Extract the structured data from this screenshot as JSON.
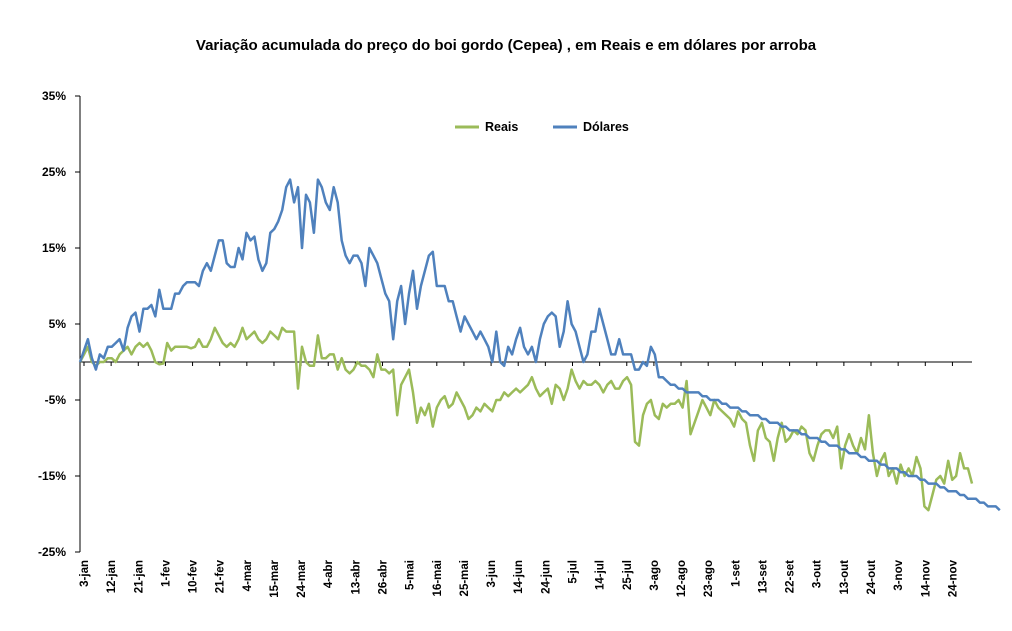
{
  "chart_data": {
    "type": "line",
    "title": "Variação acumulada do preço do boi gordo (Cepea) , em Reais e em dólares por arroba",
    "xlabel": "",
    "ylabel": "",
    "ylim": [
      -25,
      35
    ],
    "yticks": [
      -25,
      -15,
      -5,
      5,
      15,
      25,
      35
    ],
    "ytick_labels": [
      "-25%",
      "-15%",
      "-5%",
      "5%",
      "15%",
      "25%",
      "35%"
    ],
    "grid": false,
    "zero_line": true,
    "legend_position": "top-center",
    "x_tick_labels": [
      "3-jan",
      "12-jan",
      "21-jan",
      "1-fev",
      "10-fev",
      "21-fev",
      "4-mar",
      "15-mar",
      "24-mar",
      "4-abr",
      "13-abr",
      "26-abr",
      "5-mai",
      "16-mai",
      "25-mai",
      "3-jun",
      "14-jun",
      "24-jun",
      "5-jul",
      "14-jul",
      "25-jul",
      "3-ago",
      "12-ago",
      "23-ago",
      "1-set",
      "13-set",
      "22-set",
      "3-out",
      "13-out",
      "24-out",
      "3-nov",
      "14-nov",
      "24-nov"
    ],
    "points_per_tick": 7,
    "series": [
      {
        "name": "Reais",
        "color": "#9BBB59",
        "values": [
          0,
          1,
          2,
          0,
          -0.5,
          0,
          0,
          0.5,
          0.5,
          0,
          1,
          1.5,
          2,
          1,
          2,
          2.5,
          2,
          2.5,
          1.5,
          0,
          -0.3,
          -0.2,
          2.5,
          1.5,
          2,
          2,
          2,
          2,
          1.8,
          2,
          3,
          2,
          2,
          3,
          4.5,
          3.5,
          2.5,
          2,
          2.5,
          2,
          3,
          4.5,
          3,
          3.5,
          4,
          3,
          2.5,
          3,
          4,
          3.5,
          3,
          4.5,
          4,
          4,
          4,
          -3.5,
          2,
          0,
          -0.5,
          -0.5,
          3.5,
          0.5,
          0.5,
          1,
          1,
          -1,
          0.5,
          -1,
          -1.5,
          -1,
          0,
          -0.5,
          -0.5,
          -1,
          -2,
          1,
          -1,
          -1,
          -1.5,
          -1,
          -7,
          -3,
          -2,
          -1,
          -4,
          -8,
          -6,
          -7,
          -5.5,
          -8.5,
          -6,
          -5,
          -4.5,
          -6,
          -5.5,
          -4,
          -5,
          -6,
          -7.5,
          -7,
          -6,
          -6.5,
          -5.5,
          -6,
          -6.5,
          -5,
          -5,
          -4,
          -4.5,
          -4,
          -3.5,
          -4,
          -3.5,
          -3,
          -2,
          -3.5,
          -4.5,
          -4,
          -3.5,
          -5.5,
          -3,
          -3.5,
          -5,
          -3.5,
          -1,
          -2.5,
          -3.5,
          -2.5,
          -3,
          -3,
          -2.5,
          -3,
          -4,
          -3,
          -2.5,
          -3.5,
          -3.5,
          -2.5,
          -2,
          -3,
          -10.5,
          -11,
          -7,
          -5.5,
          -5,
          -7,
          -7.5,
          -5.5,
          -6,
          -5.5,
          -5.5,
          -5,
          -6,
          -2.5,
          -9.5,
          -8,
          -6.5,
          -5,
          -6,
          -7,
          -5,
          -6,
          -6.5,
          -7,
          -7.5,
          -8.5,
          -6.5,
          -7.5,
          -8,
          -11,
          -13,
          -9,
          -8,
          -10,
          -10.5,
          -13,
          -10,
          -8,
          -10.5,
          -10,
          -9,
          -9.5,
          -8.5,
          -9,
          -12,
          -13,
          -11,
          -9.5,
          -9,
          -9,
          -10,
          -8.5,
          -14,
          -11,
          -9.5,
          -11,
          -12,
          -10,
          -11.5,
          -7,
          -12,
          -15,
          -13,
          -12,
          -15,
          -14,
          -16,
          -13.5,
          -15,
          -14,
          -15,
          -12.5,
          -14,
          -19,
          -19.5,
          -17.5,
          -15.5,
          -15,
          -16,
          -13,
          -15.5,
          -15,
          -12,
          -14,
          -14,
          -16
        ]
      },
      {
        "name": "Dólares",
        "color": "#4F81BD",
        "values": [
          0,
          1.5,
          3,
          0.5,
          -1,
          1,
          0.5,
          2,
          2,
          2.5,
          3,
          1.5,
          4.5,
          6,
          6.5,
          4,
          7,
          7,
          7.5,
          6,
          9.5,
          7,
          7,
          7,
          9,
          9,
          10,
          10.5,
          10.5,
          10.5,
          10,
          12,
          13,
          12,
          14,
          16,
          16,
          13,
          12.5,
          12.5,
          15,
          13.5,
          17,
          16,
          16.5,
          13.5,
          12,
          13,
          17,
          17.5,
          18.5,
          20,
          23,
          24,
          21,
          23,
          15,
          22,
          21,
          17,
          24,
          23,
          21,
          20,
          23,
          21,
          16,
          14,
          13,
          14,
          14,
          13,
          10,
          15,
          14,
          13,
          11,
          9,
          8,
          3,
          8,
          10,
          5,
          9,
          12,
          7,
          10,
          12,
          14,
          14.5,
          10,
          10,
          10,
          8,
          8,
          6,
          4,
          6,
          5,
          4,
          3,
          4,
          3,
          2,
          0,
          4,
          0,
          -0.5,
          2,
          1,
          3,
          4.5,
          2,
          1,
          2,
          0,
          3,
          5,
          6,
          6.5,
          6,
          2,
          4,
          8,
          5,
          4,
          2,
          0,
          1,
          4,
          4,
          7,
          5,
          3,
          1,
          1,
          3,
          1,
          1,
          1,
          -1,
          -1,
          0,
          -0.5,
          2,
          1,
          -2,
          -2,
          -2.5,
          -3,
          -3,
          -3.5,
          -3.5,
          -4,
          -4,
          -4,
          -4,
          -4.5,
          -4.5,
          -5,
          -5,
          -5,
          -5.5,
          -5.5,
          -6,
          -6,
          -6,
          -6.5,
          -6.5,
          -7,
          -7,
          -7,
          -7.5,
          -7.5,
          -8,
          -8,
          -8,
          -8.5,
          -8.5,
          -9,
          -9,
          -9,
          -9.5,
          -9.5,
          -10,
          -10,
          -10,
          -10.5,
          -10.5,
          -11,
          -11,
          -11,
          -11.5,
          -11.5,
          -12,
          -12,
          -12,
          -12.5,
          -12.5,
          -13,
          -13,
          -13,
          -13.5,
          -13.5,
          -14,
          -14,
          -14,
          -14.5,
          -14.5,
          -15,
          -15,
          -15,
          -15.5,
          -15.5,
          -16,
          -16,
          -16,
          -16.5,
          -16.5,
          -17,
          -17,
          -17,
          -17.5,
          -17.5,
          -18,
          -18,
          -18,
          -18.5,
          -18.5,
          -19,
          -19,
          -19,
          -19.5
        ]
      }
    ]
  }
}
